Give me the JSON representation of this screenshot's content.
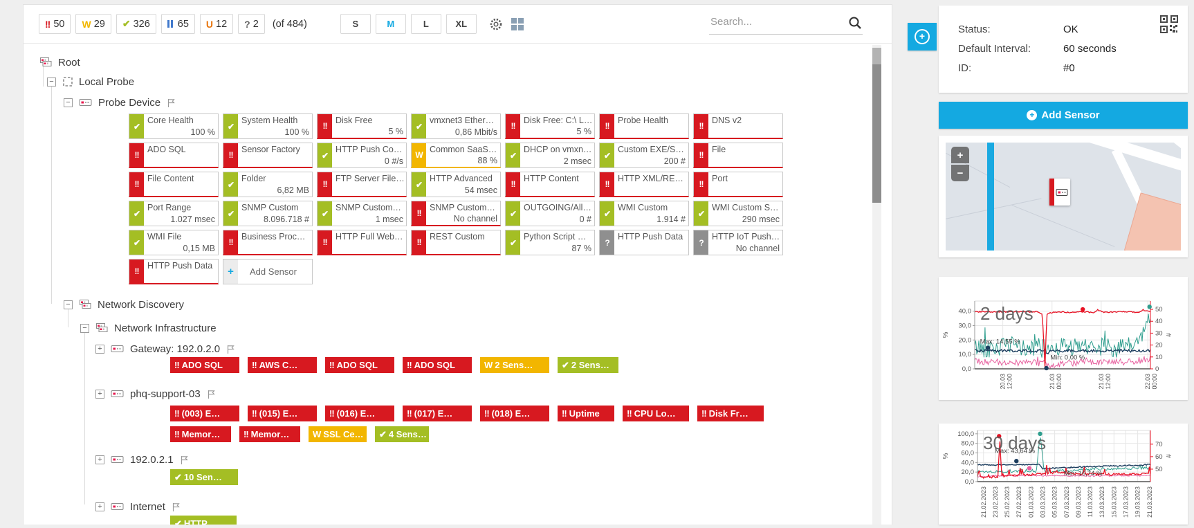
{
  "colors": {
    "down": "#d71920",
    "ok": "#a4be24",
    "warning": "#f2b600",
    "unknown": "#8f8f8f",
    "pause": "#4179cc",
    "unusual": "#e8750c",
    "accent": "#14a9e1",
    "qmark": "#666"
  },
  "toolbar": {
    "status_chips": [
      {
        "glyph": "!!",
        "count": "50",
        "color_key": "down",
        "name": "down"
      },
      {
        "glyph": "W",
        "count": "29",
        "color_key": "warning",
        "name": "warning"
      },
      {
        "glyph": "✔",
        "count": "326",
        "color_key": "ok",
        "name": "up"
      },
      {
        "glyph": "II",
        "count": "65",
        "color_key": "pause",
        "name": "paused"
      },
      {
        "glyph": "U",
        "count": "12",
        "color_key": "unusual",
        "name": "unusual"
      },
      {
        "glyph": "?",
        "count": "2",
        "color_key": "qmark",
        "name": "unknown"
      }
    ],
    "total_label": "(of 484)",
    "size_buttons": [
      {
        "label": "S",
        "active": false
      },
      {
        "label": "M",
        "active": true
      },
      {
        "label": "L",
        "active": false
      },
      {
        "label": "XL",
        "active": false
      }
    ],
    "search_placeholder": "Search..."
  },
  "tree": {
    "rows": [
      {
        "label": "Root",
        "icon": "group",
        "toggle": null,
        "flag": false
      },
      {
        "label": "Local Probe",
        "icon": "probe",
        "toggle": "minus",
        "flag": false
      },
      {
        "label": "Probe Device",
        "icon": "device",
        "toggle": "minus",
        "flag": true
      },
      {
        "label": "Network Discovery",
        "icon": "group",
        "toggle": "minus",
        "flag": false
      },
      {
        "label": "Network Infrastructure",
        "icon": "group",
        "toggle": "minus",
        "flag": false
      },
      {
        "label": "Gateway: 192.0.2.0",
        "icon": "device",
        "toggle": "plus",
        "flag": true
      },
      {
        "label": "phq-support-03",
        "icon": "device",
        "toggle": "plus",
        "flag": true
      },
      {
        "label": "192.0.2.1",
        "icon": "device",
        "toggle": "plus",
        "flag": true
      },
      {
        "label": "Internet",
        "icon": "device",
        "toggle": "plus",
        "flag": true
      }
    ]
  },
  "tiles": [
    {
      "title": "Core Health",
      "status": "ok",
      "value": "100 %"
    },
    {
      "title": "System Health",
      "status": "ok",
      "value": "100 %"
    },
    {
      "title": "Disk Free",
      "status": "down",
      "value": "5 %"
    },
    {
      "title": "vmxnet3 Ether…",
      "status": "ok",
      "value": "0,86 Mbit/s"
    },
    {
      "title": "Disk Free: C:\\ L…",
      "status": "down",
      "value": "5 %"
    },
    {
      "title": "Probe Health",
      "status": "down",
      "value": ""
    },
    {
      "title": "DNS v2",
      "status": "down",
      "value": ""
    },
    {
      "title": "ADO SQL",
      "status": "down",
      "value": ""
    },
    {
      "title": "Sensor Factory",
      "status": "down",
      "value": ""
    },
    {
      "title": "HTTP Push Co…",
      "status": "ok",
      "value": "0 #/s"
    },
    {
      "title": "Common SaaS…",
      "status": "warning",
      "value": "88 %"
    },
    {
      "title": "DHCP on vmxn…",
      "status": "ok",
      "value": "2 msec"
    },
    {
      "title": "Custom EXE/S…",
      "status": "ok",
      "value": "200 #"
    },
    {
      "title": "File",
      "status": "down",
      "value": ""
    },
    {
      "title": "File Content",
      "status": "down",
      "value": ""
    },
    {
      "title": "Folder",
      "status": "ok",
      "value": "6,82 MB"
    },
    {
      "title": "FTP Server File…",
      "status": "down",
      "value": ""
    },
    {
      "title": "HTTP Advanced",
      "status": "ok",
      "value": "54 msec"
    },
    {
      "title": "HTTP Content",
      "status": "down",
      "value": ""
    },
    {
      "title": "HTTP XML/RE…",
      "status": "down",
      "value": ""
    },
    {
      "title": "Port",
      "status": "down",
      "value": ""
    },
    {
      "title": "Port Range",
      "status": "ok",
      "value": "1.027 msec"
    },
    {
      "title": "SNMP Custom",
      "status": "ok",
      "value": "8.096.718 #"
    },
    {
      "title": "SNMP Custom…",
      "status": "ok",
      "value": "1 msec"
    },
    {
      "title": "SNMP Custom…",
      "status": "down",
      "value": "No channel"
    },
    {
      "title": "OUTGOING/All…",
      "status": "ok",
      "value": "0 #"
    },
    {
      "title": "WMI Custom",
      "status": "ok",
      "value": "1.914 #"
    },
    {
      "title": "WMI Custom S…",
      "status": "ok",
      "value": "290 msec"
    },
    {
      "title": "WMI File",
      "status": "ok",
      "value": "0,15 MB"
    },
    {
      "title": "Business Proc…",
      "status": "down",
      "value": ""
    },
    {
      "title": "HTTP Full Web…",
      "status": "down",
      "value": ""
    },
    {
      "title": "REST Custom",
      "status": "down",
      "value": ""
    },
    {
      "title": "Python Script …",
      "status": "ok",
      "value": "87 %"
    },
    {
      "title": "HTTP Push Data",
      "status": "unknown",
      "value": ""
    },
    {
      "title": "HTTP IoT Push…",
      "status": "unknown",
      "value": "No channel"
    },
    {
      "title": "HTTP Push Data",
      "status": "down",
      "value": ""
    }
  ],
  "add_sensor_tile": {
    "label": "Add Sensor",
    "plus": "+"
  },
  "chips": {
    "gateway": [
      {
        "status": "down",
        "label": "ADO SQL"
      },
      {
        "status": "down",
        "label": "AWS C…"
      },
      {
        "status": "down",
        "label": "ADO SQL"
      },
      {
        "status": "down",
        "label": "ADO SQL"
      },
      {
        "status": "warning",
        "label": "2 Sens…"
      },
      {
        "status": "ok",
        "label": "2 Sens…"
      }
    ],
    "phq1": [
      {
        "status": "down",
        "label": "(003) E…"
      },
      {
        "status": "down",
        "label": "(015) E…"
      },
      {
        "status": "down",
        "label": "(016) E…"
      },
      {
        "status": "down",
        "label": "(017) E…"
      },
      {
        "status": "down",
        "label": "(018) E…"
      },
      {
        "status": "down",
        "label": "Uptime"
      },
      {
        "status": "down",
        "label": "CPU Lo…"
      },
      {
        "status": "down",
        "label": "Disk Fr…"
      }
    ],
    "phq2": [
      {
        "status": "down",
        "label": "Memor…"
      },
      {
        "status": "down",
        "label": "Memor…"
      },
      {
        "status": "warning",
        "label": "SSL Ce…"
      },
      {
        "status": "ok",
        "label": "4 Sens…"
      }
    ],
    "ip": [
      {
        "status": "ok",
        "label": "10 Sen…"
      }
    ],
    "internet": [
      {
        "status": "ok",
        "label": "HTTP"
      }
    ]
  },
  "overview": {
    "rows": [
      {
        "label": "Status:",
        "value": "OK"
      },
      {
        "label": "Default Interval:",
        "value": "60 seconds"
      },
      {
        "label": "ID:",
        "value": "#0"
      }
    ]
  },
  "add_sensor_button": {
    "label": "Add Sensor",
    "plus": "+"
  },
  "map": {
    "zoom_in": "+",
    "zoom_out": "−"
  },
  "chart_data": [
    {
      "type": "line",
      "title": "2 days",
      "left_axis": {
        "label": "%",
        "ticks": [
          "0,0",
          "10,0",
          "20,0",
          "30,0",
          "40,0"
        ],
        "max": 47
      },
      "right_axis": {
        "label": "#",
        "ticks": [
          0,
          10,
          20,
          30,
          40,
          50
        ],
        "min": 0,
        "max": 57
      },
      "x_ticks": [
        [
          "20.03",
          "12:00"
        ],
        [
          "21.03",
          "00:00"
        ],
        [
          "21.03",
          "12:00"
        ],
        [
          "22.03",
          "00:00"
        ]
      ],
      "x_tick_pos": [
        0.16,
        0.44,
        0.72,
        0.985
      ],
      "annotations": [
        {
          "text": "Max: 14,55 %",
          "x": 0.03,
          "v": 17.5
        },
        {
          "text": "Min: 0,00 %",
          "x": 0.43,
          "v": 6.5
        }
      ],
      "series": [
        {
          "name": "teal",
          "color": "#2f9e8e",
          "axis": "left",
          "width": 1,
          "noise": 6.5,
          "spike": 5,
          "points": [
            [
              0,
              15
            ],
            [
              0.1,
              14
            ],
            [
              0.2,
              16
            ],
            [
              0.3,
              14
            ],
            [
              0.4,
              14
            ],
            [
              0.5,
              16
            ],
            [
              0.6,
              14
            ],
            [
              0.7,
              16
            ],
            [
              0.8,
              14
            ],
            [
              0.9,
              16
            ],
            [
              0.96,
              24
            ],
            [
              1,
              40
            ]
          ]
        },
        {
          "name": "pink",
          "color": "#e7609f",
          "axis": "left",
          "width": 1,
          "noise": 2.2,
          "spike": 1.5,
          "points": [
            [
              0,
              5
            ],
            [
              0.4,
              4
            ],
            [
              0.43,
              1
            ],
            [
              0.5,
              4
            ],
            [
              1,
              5
            ]
          ]
        },
        {
          "name": "navy",
          "color": "#1c3d5e",
          "axis": "left",
          "width": 1.4,
          "noise": 0.9,
          "spike": 0,
          "points": [
            [
              0,
              12.5
            ],
            [
              0.4,
              12.5
            ],
            [
              0.415,
              10.5
            ],
            [
              0.43,
              12.5
            ],
            [
              1,
              12.5
            ]
          ]
        },
        {
          "name": "red",
          "color": "#e81123",
          "axis": "right",
          "width": 1.3,
          "noise": 0.5,
          "spike": 0,
          "points": [
            [
              0,
              48
            ],
            [
              0.36,
              48
            ],
            [
              0.385,
              46
            ],
            [
              0.4,
              1
            ],
            [
              0.41,
              46
            ],
            [
              0.43,
              47
            ],
            [
              0.46,
              48
            ],
            [
              0.55,
              47.5
            ],
            [
              0.63,
              48
            ],
            [
              0.68,
              47
            ],
            [
              0.7,
              49.5
            ],
            [
              0.73,
              47.5
            ],
            [
              0.85,
              48
            ],
            [
              0.93,
              47.5
            ],
            [
              0.96,
              49.5
            ],
            [
              1,
              48
            ]
          ]
        }
      ],
      "markers": [
        {
          "color": "#e81123",
          "x": 0.615,
          "v": 50,
          "axis": "right"
        },
        {
          "color": "#1c3d5e",
          "x": 0.075,
          "v": 14.55,
          "axis": "left"
        },
        {
          "color": "#1c3d5e",
          "x": 0.408,
          "v": 0.5,
          "axis": "left"
        },
        {
          "color": "#2f9e8e",
          "x": 0.995,
          "v": 43,
          "axis": "left"
        }
      ]
    },
    {
      "type": "line",
      "title": "30 days",
      "left_axis": {
        "label": "%",
        "ticks": [
          "0,0",
          "20,0",
          "40,0",
          "60,0",
          "80,0",
          "100,0"
        ],
        "max": 107
      },
      "right_axis": {
        "label": "#",
        "ticks": [
          50,
          60,
          70
        ],
        "min": 40,
        "max": 81
      },
      "x_ticks": [
        "21.02.2023",
        "23.02.2023",
        "25.02.2023",
        "27.02.2023",
        "01.03.2023",
        "03.03.2023",
        "05.03.2023",
        "07.03.2023",
        "09.03.2023",
        "11.03.2023",
        "13.03.2023",
        "15.03.2023",
        "17.03.2023",
        "19.03.2023",
        "21.03.2023"
      ],
      "annotations": [
        {
          "text": "Max: 43,64 %",
          "x": 0.1,
          "v": 60
        },
        {
          "text": "Min: 16,74 %",
          "x": 0.5,
          "v": 13
        }
      ],
      "series": [
        {
          "name": "teal",
          "color": "#2f9e8e",
          "axis": "left",
          "width": 1,
          "noise": 3,
          "spike": 4,
          "points": [
            [
              0,
              21
            ],
            [
              0.34,
              21
            ],
            [
              0.362,
              100
            ],
            [
              0.385,
              22
            ],
            [
              0.55,
              24
            ],
            [
              0.75,
              27
            ],
            [
              1,
              29
            ]
          ]
        },
        {
          "name": "pink",
          "color": "#e7609f",
          "axis": "left",
          "width": 1,
          "noise": 1.5,
          "spike": 0,
          "points": [
            [
              0,
              11
            ],
            [
              0.3,
              13
            ],
            [
              0.5,
              12
            ],
            [
              1,
              13
            ]
          ]
        },
        {
          "name": "navy",
          "color": "#1c3d5e",
          "axis": "left",
          "width": 1.4,
          "noise": 1.3,
          "spike": 0,
          "points": [
            [
              0,
              35
            ],
            [
              0.36,
              36
            ],
            [
              0.375,
              27
            ],
            [
              0.5,
              29
            ],
            [
              0.62,
              31
            ],
            [
              0.8,
              33
            ],
            [
              0.93,
              34
            ],
            [
              1,
              36
            ]
          ]
        },
        {
          "name": "red",
          "color": "#e81123",
          "axis": "left",
          "width": 1.3,
          "noise": 2.2,
          "spike": 6,
          "points": [
            [
              0,
              9
            ],
            [
              0.12,
              10
            ],
            [
              0.128,
              95
            ],
            [
              0.14,
              11
            ],
            [
              0.3,
              14
            ],
            [
              0.45,
              19
            ],
            [
              0.55,
              17
            ],
            [
              0.75,
              15
            ],
            [
              1,
              16
            ]
          ]
        }
      ],
      "markers": [
        {
          "color": "#e81123",
          "x": 0.125,
          "v": 95,
          "axis": "left"
        },
        {
          "color": "#2f9e8e",
          "x": 0.362,
          "v": 100,
          "axis": "left"
        },
        {
          "color": "#1c3d5e",
          "x": 0.225,
          "v": 43,
          "axis": "left"
        },
        {
          "color": "#e7609f",
          "x": 0.3,
          "v": 28,
          "axis": "left"
        }
      ]
    }
  ]
}
